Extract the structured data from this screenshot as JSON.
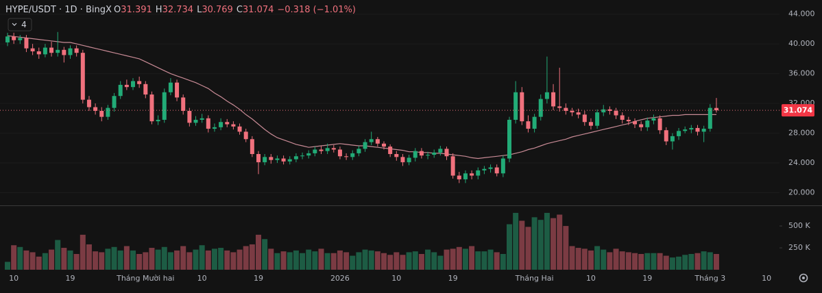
{
  "chart_data": {
    "type": "candlestick",
    "symbol": "HYPE/USDT · 1D · BingX",
    "ohlc": [
      {
        "key": "O",
        "value": "31.391"
      },
      {
        "key": "H",
        "value": "32.734"
      },
      {
        "key": "L",
        "value": "30.769"
      },
      {
        "key": "C",
        "value": "31.074"
      }
    ],
    "change": "−0.318 (−1.01%)",
    "indicator_count": "4",
    "last_price_label": "31.074",
    "up_color": "#22ab77",
    "down_color": "#f0717d",
    "volume_up_color": "#1d5c44",
    "volume_down_color": "#7b3b43",
    "ma_color": "#c98b96",
    "categories": [
      null,
      "10",
      null,
      null,
      null,
      null,
      null,
      null,
      null,
      null,
      "19",
      null,
      null,
      null,
      null,
      null,
      null,
      null,
      null,
      null,
      null,
      null,
      "Tháng Mười hai",
      null,
      null,
      null,
      null,
      null,
      null,
      null,
      null,
      "10",
      null,
      null,
      null,
      null,
      null,
      null,
      null,
      null,
      "19",
      null,
      null,
      null,
      null,
      null,
      null,
      null,
      null,
      null,
      null,
      null,
      null,
      "2026",
      null,
      null,
      null,
      null,
      null,
      null,
      null,
      null,
      "10",
      null,
      null,
      null,
      null,
      null,
      null,
      null,
      null,
      "19",
      null,
      null,
      null,
      null,
      null,
      null,
      null,
      null,
      null,
      null,
      null,
      null,
      "Tháng Hai",
      null,
      null,
      null,
      null,
      null,
      null,
      null,
      null,
      "10",
      null,
      null,
      null,
      null,
      null,
      null,
      null,
      null,
      "19",
      null,
      null,
      null,
      null,
      null,
      null,
      null,
      null,
      null,
      "Tháng 3",
      null,
      null,
      null,
      null,
      null,
      null,
      null,
      null,
      "10"
    ],
    "open": [
      40.2,
      41.0,
      40.5,
      40.8,
      39.4,
      39.0,
      38.6,
      39.5,
      38.8,
      39.2,
      38.5,
      39.4,
      38.8,
      32.5,
      31.5,
      31.0,
      30.2,
      31.4,
      33.0,
      34.5,
      34.2,
      35.0,
      34.6,
      33.2,
      29.6,
      29.8,
      33.5,
      34.8,
      32.8,
      31.0,
      29.4,
      29.8,
      30.0,
      28.6,
      28.8,
      29.5,
      29.2,
      28.9,
      28.2,
      27.2,
      25.2,
      24.1,
      24.8,
      24.4,
      24.6,
      24.2,
      24.5,
      24.9,
      25.0,
      25.3,
      25.8,
      25.6,
      26.0,
      25.8,
      24.9,
      24.8,
      25.3,
      25.9,
      26.8,
      27.2,
      26.6,
      26.2,
      25.2,
      24.8,
      24.1,
      24.7,
      25.6,
      25.0,
      25.1,
      25.4,
      25.9,
      24.9,
      22.3,
      21.8,
      22.6,
      22.3,
      23.0,
      23.2,
      23.4,
      22.6,
      24.6,
      29.8,
      33.5,
      29.6,
      28.6,
      30.2,
      32.6,
      33.5,
      31.6,
      31.4,
      31.0,
      30.8,
      30.5,
      29.5,
      29.0,
      30.8,
      31.2,
      31.0,
      30.4,
      29.8,
      29.6,
      29.2,
      28.8,
      29.7,
      30.0,
      28.4,
      26.9,
      27.6,
      28.3,
      28.5,
      28.7,
      28.2,
      28.6,
      31.391,
      null,
      null,
      null,
      null,
      null,
      null,
      null,
      null
    ],
    "high": [
      41.5,
      41.5,
      41.2,
      41.2,
      40.0,
      39.5,
      40.0,
      40.3,
      41.6,
      39.6,
      39.8,
      39.8,
      39.2,
      33.0,
      32.0,
      31.5,
      31.8,
      33.4,
      35.0,
      35.2,
      35.4,
      35.6,
      35.0,
      33.6,
      30.4,
      34.0,
      35.4,
      35.2,
      33.2,
      31.4,
      30.3,
      30.6,
      30.4,
      29.3,
      30.0,
      29.9,
      29.6,
      29.3,
      28.6,
      27.6,
      25.6,
      25.2,
      25.2,
      25.0,
      25.0,
      24.9,
      25.3,
      25.4,
      25.7,
      26.2,
      26.3,
      26.6,
      26.4,
      26.2,
      25.3,
      25.7,
      26.3,
      27.2,
      28.2,
      27.5,
      26.9,
      26.5,
      25.6,
      25.2,
      25.1,
      26.0,
      26.0,
      25.5,
      25.8,
      26.3,
      26.2,
      25.3,
      22.8,
      23.0,
      23.0,
      23.4,
      23.6,
      23.8,
      23.8,
      25.0,
      30.2,
      35.0,
      34.2,
      30.4,
      30.6,
      33.2,
      38.3,
      34.6,
      36.8,
      32.0,
      31.4,
      31.3,
      31.0,
      30.0,
      31.2,
      31.8,
      31.6,
      31.4,
      30.8,
      30.2,
      30.0,
      29.6,
      30.1,
      30.5,
      30.4,
      28.8,
      28.0,
      28.7,
      28.9,
      29.1,
      29.1,
      29.0,
      31.9,
      32.734,
      null,
      null,
      null,
      null,
      null,
      null,
      null,
      null
    ],
    "low": [
      39.7,
      40.0,
      40.0,
      38.9,
      38.5,
      38.0,
      38.2,
      38.3,
      38.3,
      37.5,
      38.0,
      38.3,
      32.0,
      31.0,
      30.5,
      29.6,
      29.8,
      30.9,
      32.6,
      33.8,
      33.8,
      34.1,
      32.7,
      29.2,
      29.1,
      29.4,
      33.1,
      32.3,
      30.5,
      28.9,
      29.0,
      29.4,
      28.1,
      28.2,
      28.4,
      28.8,
      28.5,
      27.8,
      26.8,
      24.8,
      22.5,
      23.7,
      23.9,
      24.0,
      23.8,
      23.8,
      24.1,
      24.5,
      24.6,
      24.9,
      25.2,
      25.2,
      25.4,
      24.5,
      24.4,
      24.4,
      24.9,
      25.5,
      26.4,
      26.2,
      25.8,
      24.8,
      24.3,
      23.6,
      23.7,
      24.2,
      24.6,
      24.5,
      24.7,
      25.0,
      24.4,
      21.9,
      21.3,
      21.3,
      21.8,
      21.8,
      22.5,
      22.7,
      22.2,
      22.1,
      24.1,
      29.3,
      29.1,
      28.1,
      28.1,
      29.7,
      32.0,
      31.1,
      30.9,
      30.5,
      30.3,
      30.0,
      29.0,
      28.5,
      28.6,
      30.3,
      30.5,
      29.9,
      29.3,
      29.1,
      28.7,
      28.3,
      28.3,
      29.2,
      27.9,
      26.4,
      25.8,
      27.1,
      28.0,
      28.0,
      27.7,
      26.8,
      28.2,
      30.769,
      null,
      null,
      null,
      null,
      null,
      null,
      null,
      null
    ],
    "close": [
      41.0,
      40.5,
      40.8,
      39.4,
      39.0,
      38.6,
      39.5,
      38.8,
      39.2,
      38.5,
      39.4,
      38.8,
      32.5,
      31.5,
      31.0,
      30.2,
      31.4,
      33.0,
      34.5,
      34.2,
      35.0,
      34.6,
      33.2,
      29.6,
      29.8,
      33.5,
      34.8,
      32.8,
      31.0,
      29.4,
      29.8,
      30.0,
      28.6,
      28.8,
      29.5,
      29.2,
      28.9,
      28.2,
      27.2,
      25.2,
      24.1,
      24.8,
      24.4,
      24.6,
      24.2,
      24.5,
      24.9,
      25.0,
      25.3,
      25.8,
      25.6,
      26.0,
      25.8,
      24.9,
      24.8,
      25.3,
      25.9,
      26.8,
      27.2,
      26.6,
      26.2,
      25.2,
      24.8,
      24.1,
      24.7,
      25.6,
      25.0,
      25.1,
      25.4,
      25.9,
      24.9,
      22.3,
      21.8,
      22.6,
      22.3,
      23.0,
      23.2,
      23.4,
      22.6,
      24.6,
      29.8,
      33.5,
      29.6,
      28.6,
      30.2,
      32.6,
      33.5,
      31.6,
      31.4,
      31.0,
      30.8,
      30.5,
      29.5,
      29.0,
      30.8,
      31.2,
      31.0,
      30.4,
      29.8,
      29.6,
      29.2,
      28.8,
      29.7,
      30.0,
      28.4,
      26.9,
      27.6,
      28.3,
      28.5,
      28.7,
      28.2,
      28.6,
      31.4,
      31.074,
      null,
      null,
      null,
      null,
      null,
      null,
      null,
      null
    ],
    "volume": [
      90000,
      280000,
      260000,
      220000,
      200000,
      150000,
      190000,
      230000,
      340000,
      250000,
      220000,
      180000,
      400000,
      290000,
      210000,
      200000,
      240000,
      260000,
      220000,
      270000,
      220000,
      180000,
      200000,
      250000,
      230000,
      260000,
      200000,
      220000,
      270000,
      200000,
      230000,
      280000,
      220000,
      240000,
      250000,
      220000,
      200000,
      230000,
      270000,
      290000,
      400000,
      350000,
      240000,
      190000,
      210000,
      200000,
      220000,
      190000,
      230000,
      210000,
      240000,
      190000,
      190000,
      220000,
      200000,
      160000,
      200000,
      230000,
      220000,
      210000,
      190000,
      170000,
      200000,
      170000,
      200000,
      210000,
      180000,
      230000,
      200000,
      160000,
      230000,
      240000,
      260000,
      240000,
      270000,
      210000,
      210000,
      230000,
      200000,
      180000,
      520000,
      650000,
      560000,
      490000,
      600000,
      570000,
      650000,
      590000,
      630000,
      500000,
      270000,
      250000,
      240000,
      220000,
      270000,
      230000,
      200000,
      240000,
      210000,
      200000,
      190000,
      180000,
      190000,
      190000,
      190000,
      160000,
      140000,
      150000,
      170000,
      180000,
      190000,
      210000,
      200000,
      180000,
      null,
      null,
      null,
      null,
      null,
      null,
      null,
      null
    ],
    "ma": [
      41.1,
      41.0,
      40.9,
      40.8,
      40.7,
      40.6,
      40.5,
      40.4,
      40.3,
      40.2,
      40.2,
      40.0,
      39.8,
      39.6,
      39.4,
      39.2,
      39.0,
      38.8,
      38.6,
      38.4,
      38.2,
      38.0,
      37.6,
      37.2,
      36.8,
      36.4,
      36.0,
      35.7,
      35.4,
      35.1,
      34.8,
      34.4,
      34.0,
      33.4,
      32.9,
      32.3,
      31.8,
      31.2,
      30.5,
      29.9,
      29.2,
      28.5,
      27.9,
      27.4,
      27.1,
      26.8,
      26.5,
      26.3,
      26.1,
      26.2,
      26.3,
      26.4,
      26.5,
      26.6,
      26.5,
      26.4,
      26.3,
      26.3,
      26.2,
      26.1,
      26.0,
      25.9,
      25.8,
      25.7,
      25.5,
      25.5,
      25.4,
      25.4,
      25.3,
      25.3,
      25.2,
      25.1,
      25.0,
      24.9,
      24.7,
      24.6,
      24.7,
      24.8,
      24.9,
      25.0,
      25.1,
      25.3,
      25.5,
      25.8,
      26.0,
      26.3,
      26.6,
      26.8,
      27.0,
      27.2,
      27.5,
      27.7,
      27.9,
      28.1,
      28.3,
      28.5,
      28.7,
      28.9,
      29.1,
      29.3,
      29.6,
      29.8,
      30.0,
      30.1,
      30.2,
      30.3,
      30.4,
      30.4,
      30.5,
      30.5,
      30.5,
      30.5,
      30.5,
      30.5,
      null,
      null,
      null,
      null,
      null,
      null,
      null,
      null
    ],
    "ylim": [
      18.3,
      45.9
    ],
    "yticks": [
      {
        "value": 20,
        "label": "20.000"
      },
      {
        "value": 24,
        "label": "24.000"
      },
      {
        "value": 28,
        "label": "28.000"
      },
      {
        "value": 32,
        "label": "32.000"
      },
      {
        "value": 36,
        "label": "36.000"
      },
      {
        "value": 40,
        "label": "40.000"
      },
      {
        "value": 44,
        "label": "44.000"
      }
    ],
    "volume_ylim": [
      0,
      720000
    ],
    "volume_yticks": [
      {
        "value": 250000,
        "label": "250 K"
      },
      {
        "value": 500000,
        "label": "500 K"
      }
    ]
  }
}
